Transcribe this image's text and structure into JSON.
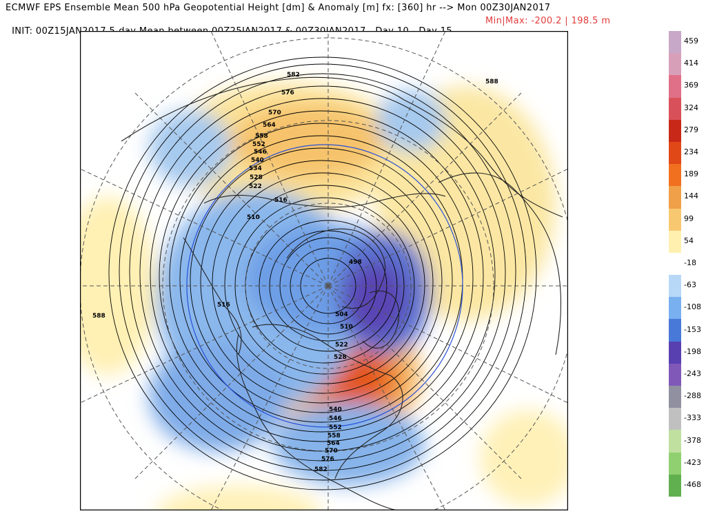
{
  "header": {
    "line1": "ECMWF EPS Ensemble Mean 500 hPa Geopotential Height [dm] & Anomaly [m] fx: [360] hr --> Mon 00Z30JAN2017",
    "line2": "INIT: 00Z15JAN2017 5-day Mean between 00Z25JAN2017 & 00Z30JAN2017   Day 10 - Day 15",
    "minmax": "Min|Max: -200.2 | 198.5 m"
  },
  "colorbar": {
    "labels": [
      "459",
      "414",
      "369",
      "324",
      "279",
      "234",
      "189",
      "144",
      "99",
      "54",
      "-18",
      "-63",
      "-108",
      "-153",
      "-198",
      "-243",
      "-288",
      "-333",
      "-378",
      "-423",
      "-468"
    ],
    "colors": [
      "#c8a8c8",
      "#d8a0b8",
      "#e07088",
      "#d8505a",
      "#c82818",
      "#e04818",
      "#f07020",
      "#f0a048",
      "#f8c870",
      "#fff0b0",
      "#ffffff",
      "#b8d8f8",
      "#78b0f0",
      "#4878d8",
      "#5840b0",
      "#8058b8",
      "#9090a0",
      "#c0c0c0",
      "#c0e0a0",
      "#90d070",
      "#60b050"
    ],
    "boundary_labels": [
      "-18",
      "-63",
      "-108",
      "-153",
      "-198",
      "-243",
      "-288",
      "-333",
      "-378",
      "-423",
      "-468"
    ]
  },
  "map": {
    "contour_labels": [
      "582",
      "576",
      "570",
      "564",
      "558",
      "552",
      "546",
      "540",
      "534",
      "528",
      "522",
      "516",
      "510",
      "504",
      "498",
      "588",
      "540",
      "546",
      "552",
      "558",
      "564",
      "570",
      "576",
      "582",
      "510",
      "516",
      "522",
      "528"
    ],
    "pole_min_label": "498"
  }
}
